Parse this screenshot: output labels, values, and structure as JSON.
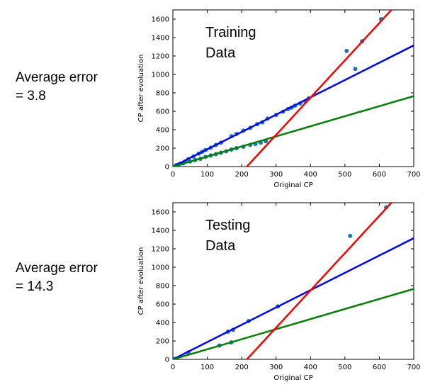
{
  "labels": {
    "top": {
      "line1": "Average error",
      "line2": "= 3.8"
    },
    "bottom": {
      "line1": "Average error",
      "line2": "= 14.3"
    }
  },
  "chart_data": [
    {
      "type": "scatter",
      "xlabel": "Original CP",
      "ylabel": "CP after evoluation",
      "xlim": [
        0,
        700
      ],
      "ylim": [
        0,
        1700
      ],
      "xticks": [
        0,
        100,
        200,
        300,
        400,
        500,
        600,
        700
      ],
      "yticks": [
        0,
        200,
        400,
        600,
        800,
        1000,
        1200,
        1400,
        1600
      ],
      "annotation": {
        "line1": "Training",
        "line2": "Data"
      },
      "point_color": "#1f77b4",
      "lines": [
        {
          "color": "#0000ff",
          "x": [
            0,
            700
          ],
          "y": [
            0,
            1315
          ]
        },
        {
          "color": "#008000",
          "x": [
            0,
            700
          ],
          "y": [
            0,
            765
          ]
        },
        {
          "color": "#ff0000",
          "x": [
            215,
            635
          ],
          "y": [
            0,
            1700
          ]
        }
      ],
      "points": [
        [
          10,
          15
        ],
        [
          20,
          30
        ],
        [
          35,
          55
        ],
        [
          45,
          80
        ],
        [
          60,
          110
        ],
        [
          75,
          140
        ],
        [
          85,
          160
        ],
        [
          95,
          180
        ],
        [
          110,
          205
        ],
        [
          125,
          235
        ],
        [
          140,
          260
        ],
        [
          170,
          330
        ],
        [
          185,
          355
        ],
        [
          205,
          390
        ],
        [
          225,
          420
        ],
        [
          245,
          460
        ],
        [
          260,
          480
        ],
        [
          275,
          520
        ],
        [
          300,
          560
        ],
        [
          320,
          595
        ],
        [
          335,
          625
        ],
        [
          345,
          640
        ],
        [
          355,
          660
        ],
        [
          370,
          685
        ],
        [
          385,
          710
        ],
        [
          395,
          740
        ],
        [
          15,
          18
        ],
        [
          30,
          35
        ],
        [
          50,
          55
        ],
        [
          65,
          70
        ],
        [
          80,
          85
        ],
        [
          95,
          105
        ],
        [
          110,
          120
        ],
        [
          125,
          135
        ],
        [
          140,
          150
        ],
        [
          155,
          165
        ],
        [
          170,
          185
        ],
        [
          185,
          200
        ],
        [
          205,
          215
        ],
        [
          225,
          235
        ],
        [
          240,
          245
        ],
        [
          255,
          260
        ],
        [
          270,
          275
        ],
        [
          505,
          1255
        ],
        [
          530,
          1060
        ],
        [
          550,
          1360
        ],
        [
          605,
          1600
        ]
      ]
    },
    {
      "type": "scatter",
      "xlabel": "Original CP",
      "ylabel": "CP after evoluation",
      "xlim": [
        0,
        700
      ],
      "ylim": [
        0,
        1700
      ],
      "xticks": [
        0,
        100,
        200,
        300,
        400,
        500,
        600,
        700
      ],
      "yticks": [
        0,
        200,
        400,
        600,
        800,
        1000,
        1200,
        1400,
        1600
      ],
      "annotation": {
        "line1": "Testing",
        "line2": "Data"
      },
      "point_color": "#1f77b4",
      "lines": [
        {
          "color": "#0000ff",
          "x": [
            0,
            700
          ],
          "y": [
            0,
            1315
          ]
        },
        {
          "color": "#008000",
          "x": [
            0,
            700
          ],
          "y": [
            0,
            765
          ]
        },
        {
          "color": "#ff0000",
          "x": [
            215,
            635
          ],
          "y": [
            0,
            1700
          ]
        }
      ],
      "points": [
        [
          5,
          5
        ],
        [
          45,
          75
        ],
        [
          160,
          300
        ],
        [
          175,
          320
        ],
        [
          220,
          415
        ],
        [
          305,
          575
        ],
        [
          135,
          150
        ],
        [
          170,
          185
        ],
        [
          515,
          1340
        ],
        [
          620,
          1650
        ]
      ]
    }
  ]
}
